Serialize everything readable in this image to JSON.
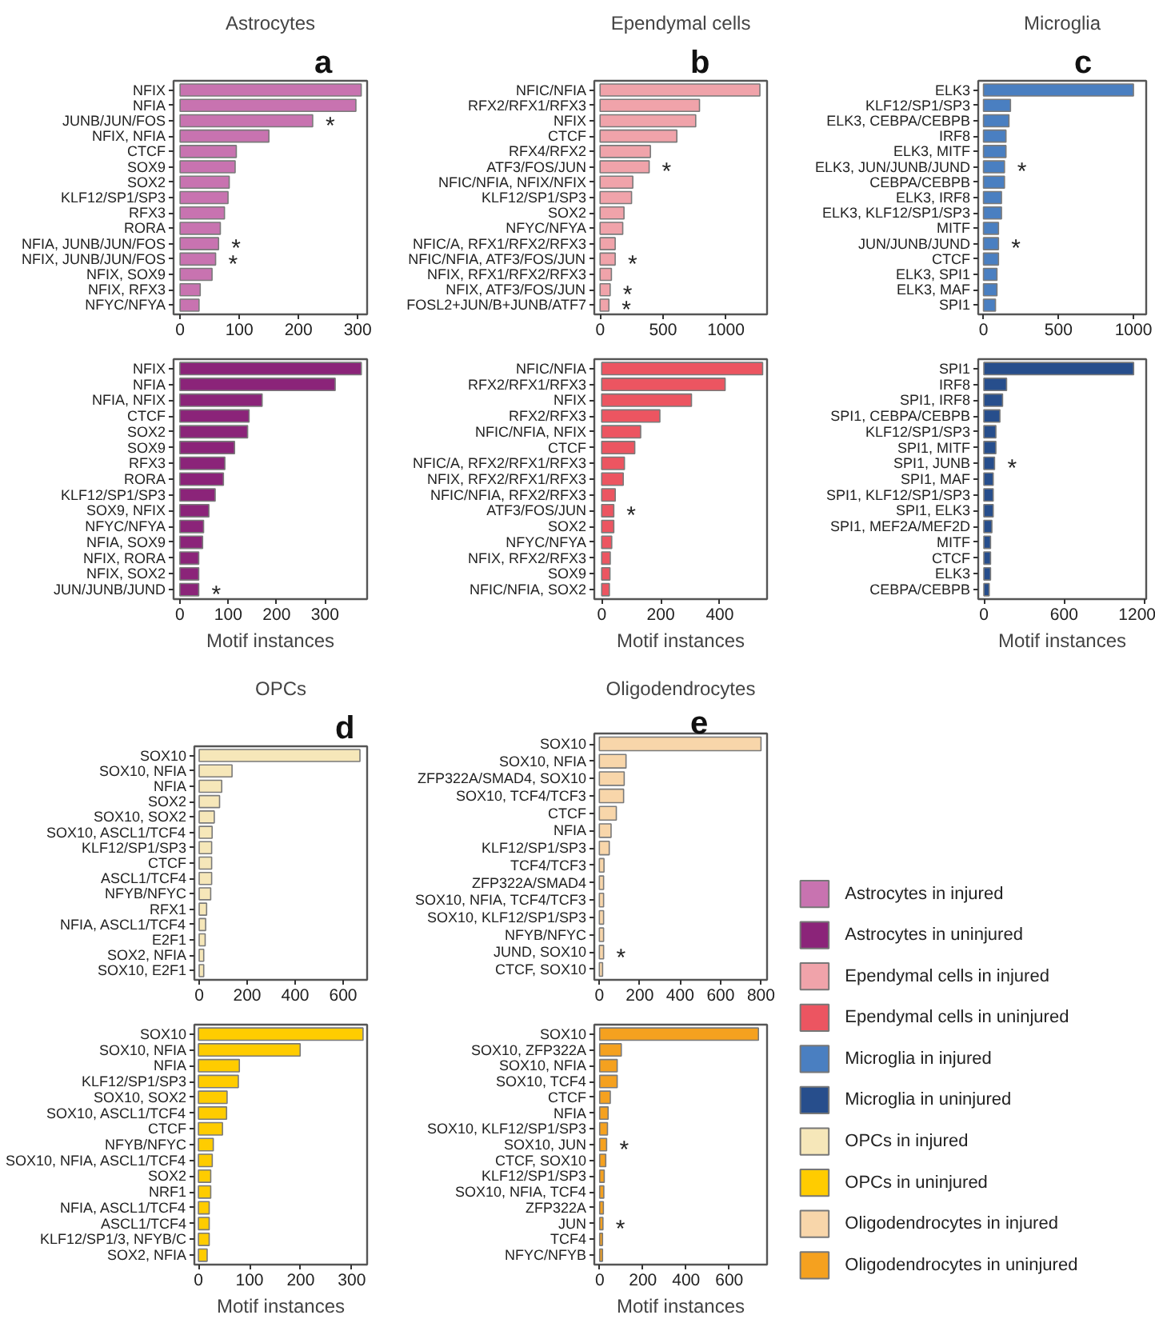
{
  "chart_data": [
    {
      "type": "bar",
      "orientation": "horizontal",
      "title": "Astrocytes",
      "legend": "bottom right",
      "xlim": [
        -11,
        316
      ],
      "xticks": [
        0,
        100,
        200,
        300
      ],
      "categories": [
        "NFIX",
        "NFIA",
        "JUNB/JUN/FOS",
        "NFIX, NFIA",
        "CTCF",
        "SOX9",
        "SOX2",
        "KLF12/SP1/SP3",
        "RFX3",
        "RORA",
        "NFIA, JUNB/JUN/FOS",
        "NFIX, JUNB/JUN/FOS",
        "NFIX, SOX9",
        "NFIX, RFX3",
        "NFYC/NFYA"
      ],
      "series": [
        {
          "name": "Astrocytes in injured",
          "color": "#c873b0",
          "values": [
            306,
            297,
            224,
            150,
            95,
            93,
            83,
            81,
            75,
            68,
            65,
            60,
            54,
            34,
            32
          ]
        }
      ],
      "annotations": [
        "a",
        {
          "text": "*",
          "x": 224,
          "y": "JUNB/JUN/FOS"
        },
        {
          "text": "*",
          "x": 65,
          "y": "NFIA, JUNB/JUN/FOS"
        },
        {
          "text": "*",
          "x": 60,
          "y": "NFIX, JUNB/JUN/FOS"
        }
      ]
    },
    {
      "type": "bar",
      "orientation": "horizontal",
      "legend": "bottom right",
      "xlim": [
        -13,
        387
      ],
      "xticks": [
        0,
        100,
        200,
        300
      ],
      "xlabel": "Motif instances",
      "categories": [
        "NFIX",
        "NFIA",
        "NFIA, NFIX",
        "CTCF",
        "SOX2",
        "SOX9",
        "RFX3",
        "RORA",
        "KLF12/SP1/SP3",
        "SOX9, NFIX",
        "NFYC/NFYA",
        "NFIA, SOX9",
        "NFIX, RORA",
        "NFIX, SOX2",
        "JUN/JUNB/JUND"
      ],
      "series": [
        {
          "name": "Astrocytes in uninjured",
          "color": "#8b2479",
          "values": [
            375,
            321,
            170,
            143,
            140,
            113,
            93,
            90,
            73,
            60,
            49,
            47,
            39,
            39,
            39
          ]
        }
      ],
      "annotations": [
        {
          "text": "*",
          "x": 39,
          "y": "JUN/JUNB/JUND"
        }
      ]
    },
    {
      "type": "bar",
      "orientation": "horizontal",
      "title": "Ependymal cells",
      "legend": "bottom right",
      "xlim": [
        -46,
        1327
      ],
      "xticks": [
        0,
        500,
        1000
      ],
      "categories": [
        "NFIC/NFIA",
        "RFX2/RFX1/RFX3",
        "NFIX",
        "CTCF",
        "RFX4/RFX2",
        "ATF3/FOS/JUN",
        "NFIC/NFIA, NFIX/NFIX",
        "KLF12/SP1/SP3",
        "SOX2",
        "NFYC/NFYA",
        "NFIC/A, RFX1/RFX2/RFX3",
        "NFIC/NFIA, ATF3/FOS/JUN",
        "NFIX, RFX1/RFX2/RFX3",
        "NFIX, ATF3/FOS/JUN",
        "FOSL2+JUN/B+JUNB/ATF7"
      ],
      "series": [
        {
          "name": "Ependymal cells in injured",
          "color": "#f0a3aa",
          "values": [
            1270,
            790,
            760,
            610,
            400,
            390,
            260,
            250,
            190,
            180,
            120,
            120,
            90,
            80,
            70
          ]
        }
      ],
      "annotations": [
        "b",
        {
          "text": "*",
          "x": 390,
          "y": "ATF3/FOS/JUN"
        },
        {
          "text": "*",
          "x": 120,
          "y": "NFIC/NFIA, ATF3/FOS/JUN"
        },
        {
          "text": "*",
          "x": 80,
          "y": "NFIX, ATF3/FOS/JUN"
        },
        {
          "text": "*",
          "x": 70,
          "y": "FOSL2+JUN/B+JUNB/ATF7"
        }
      ]
    },
    {
      "type": "bar",
      "orientation": "horizontal",
      "legend": "bottom right",
      "xlim": [
        -25,
        560
      ],
      "xticks": [
        0,
        200,
        400
      ],
      "xlabel": "Motif instances",
      "categories": [
        "NFIC/NFIA",
        "RFX2/RFX1/RFX3",
        "NFIX",
        "RFX2/RFX3",
        "NFIC/NFIA, NFIX",
        "CTCF",
        "NFIC/A, RFX2/RFX1/RFX3",
        "NFIX, RFX2/RFX1/RFX3",
        "NFIC/NFIA, RFX2/RFX3",
        "ATF3/FOS/JUN",
        "SOX2",
        "NFYC/NFYA",
        "NFIX, RFX2/RFX3",
        "SOX9",
        "NFIC/NFIA, SOX2"
      ],
      "series": [
        {
          "name": "Ependymal cells in uninjured",
          "color": "#ec5561",
          "values": [
            545,
            418,
            304,
            197,
            132,
            112,
            77,
            73,
            46,
            41,
            41,
            34,
            29,
            28,
            26
          ]
        }
      ],
      "annotations": [
        {
          "text": "*",
          "x": 41,
          "y": "ATF3/FOS/JUN"
        }
      ]
    },
    {
      "type": "bar",
      "orientation": "horizontal",
      "title": "Microglia",
      "legend": "bottom left",
      "xlim": [
        -35,
        1085
      ],
      "xticks": [
        0,
        500,
        1000
      ],
      "categories": [
        "ELK3",
        "KLF12/SP1/SP3",
        "ELK3, CEBPA/CEBPB",
        "IRF8",
        "ELK3, MITF",
        "ELK3, JUN/JUNB/JUND",
        "CEBPA/CEBPB",
        "ELK3, IRF8",
        "ELK3, KLF12/SP1/SP3",
        "MITF",
        "JUN/JUNB/JUND",
        "CTCF",
        "ELK3, SPI1",
        "ELK3, MAF",
        "SPI1"
      ],
      "series": [
        {
          "name": "Microglia in injured",
          "color": "#4a7fc1",
          "values": [
            1000,
            180,
            170,
            150,
            150,
            140,
            140,
            120,
            120,
            100,
            100,
            100,
            90,
            90,
            80
          ]
        }
      ],
      "annotations": [
        "c",
        {
          "text": "*",
          "x": 140,
          "y": "ELK3, JUN/JUNB/JUND"
        },
        {
          "text": "*",
          "x": 100,
          "y": "JUN/JUNB/JUND"
        }
      ]
    },
    {
      "type": "bar",
      "orientation": "horizontal",
      "legend": "bottom left",
      "xlim": [
        -42,
        1214
      ],
      "xticks": [
        0,
        600,
        1200
      ],
      "xlabel": "Motif instances",
      "categories": [
        "SPI1",
        "IRF8",
        "SPI1, IRF8",
        "SPI1, CEBPA/CEBPB",
        "KLF12/SP1/SP3",
        "SPI1, MITF",
        "SPI1, JUNB",
        "SPI1, MAF",
        "SPI1, KLF12/SP1/SP3",
        "SPI1, ELK3",
        "SPI1, MEF2A/MEF2D",
        "MITF",
        "CTCF",
        "ELK3",
        "CEBPA/CEBPB"
      ],
      "series": [
        {
          "name": "Microglia in uninjured",
          "color": "#274e8c",
          "values": [
            1120,
            170,
            140,
            120,
            90,
            90,
            80,
            70,
            70,
            70,
            60,
            50,
            50,
            50,
            40
          ]
        }
      ],
      "annotations": [
        {
          "text": "*",
          "x": 80,
          "y": "SPI1, JUNB"
        }
      ]
    },
    {
      "type": "bar",
      "orientation": "horizontal",
      "title": "OPCs",
      "legend": "right",
      "xlim": [
        -20,
        700
      ],
      "xticks": [
        0,
        200,
        400,
        600
      ],
      "categories": [
        "SOX10",
        "SOX10, NFIA",
        "NFIA",
        "SOX2",
        "SOX10, SOX2",
        "SOX10, ASCL1/TCF4",
        "KLF12/SP1/SP3",
        "CTCF",
        "ASCL1/TCF4",
        "NFYB/NFYC",
        "RFX1",
        "NFIA, ASCL1/TCF4",
        "E2F1",
        "SOX2, NFIA",
        "SOX10, E2F1"
      ],
      "series": [
        {
          "name": "OPCs in injured",
          "color": "#f6e7b9",
          "values": [
            670,
            137,
            94,
            85,
            63,
            54,
            52,
            52,
            52,
            48,
            31,
            27,
            25,
            19,
            19
          ]
        }
      ],
      "annotations": [
        "d"
      ]
    },
    {
      "type": "bar",
      "orientation": "horizontal",
      "legend": "right",
      "xlim": [
        -8,
        330
      ],
      "xticks": [
        0,
        100,
        200,
        300
      ],
      "xlabel": "Motif instances",
      "categories": [
        "SOX10",
        "SOX10, NFIA",
        "NFIA",
        "KLF12/SP1/SP3",
        "SOX10, SOX2",
        "SOX10, ASCL1/TCF4",
        "CTCF",
        "NFYB/NFYC",
        "SOX10, NFIA, ASCL1/TCF4",
        "SOX2",
        "NRF1",
        "NFIA, ASCL1/TCF4",
        "ASCL1/TCF4",
        "KLF12/SP1/3, NFYB/C",
        "SOX2, NFIA"
      ],
      "series": [
        {
          "name": "OPCs in uninjured",
          "color": "#ffcc00",
          "values": [
            322,
            199,
            80,
            78,
            56,
            55,
            47,
            29,
            27,
            24,
            24,
            21,
            21,
            21,
            17
          ]
        }
      ]
    },
    {
      "type": "bar",
      "orientation": "horizontal",
      "title": "Oligodendrocytes",
      "legend": "right",
      "xlim": [
        -25,
        830
      ],
      "xticks": [
        0,
        200,
        400,
        600,
        800
      ],
      "categories": [
        "SOX10",
        "SOX10, NFIA",
        "ZFP322A/SMAD4, SOX10",
        "SOX10, TCF4/TCF3",
        "CTCF",
        "NFIA",
        "KLF12/SP1/SP3",
        "TCF4/TCF3",
        "ZFP322A/SMAD4",
        "SOX10, NFIA, TCF4/TCF3",
        "SOX10, KLF12/SP1/SP3",
        "NFYB/NFYC",
        "JUND, SOX10",
        "CTCF, SOX10"
      ],
      "series": [
        {
          "name": "Oligodendrocytes in injured",
          "color": "#f8d6aa",
          "values": [
            800,
            132,
            123,
            120,
            84,
            58,
            49,
            23,
            21,
            21,
            21,
            21,
            21,
            16
          ]
        }
      ],
      "annotations": [
        "e",
        {
          "text": "*",
          "x": 21,
          "y": "JUND, SOX10"
        }
      ]
    },
    {
      "type": "bar",
      "orientation": "horizontal",
      "legend": "right",
      "xlim": [
        -25,
        775
      ],
      "xticks": [
        0,
        200,
        400,
        600
      ],
      "xlabel": "Motif instances",
      "categories": [
        "SOX10",
        "SOX10, ZFP322A",
        "SOX10, NFIA",
        "SOX10, TCF4",
        "CTCF",
        "NFIA",
        "SOX10, KLF12/SP1/SP3",
        "SOX10, JUN",
        "CTCF, SOX10",
        "KLF12/SP1/SP3",
        "SOX10, NFIA, TCF4",
        "ZFP322A",
        "JUN",
        "TCF4",
        "NFYC/NFYB"
      ],
      "series": [
        {
          "name": "Oligodendrocytes in uninjured",
          "color": "#f5a11f",
          "values": [
            735,
            100,
            81,
            81,
            49,
            39,
            36,
            32,
            28,
            21,
            19,
            17,
            15,
            13,
            13
          ]
        }
      ],
      "annotations": [
        {
          "text": "*",
          "x": 32,
          "y": "SOX10, JUN"
        },
        {
          "text": "*",
          "x": 15,
          "y": "JUN"
        }
      ]
    }
  ]
}
